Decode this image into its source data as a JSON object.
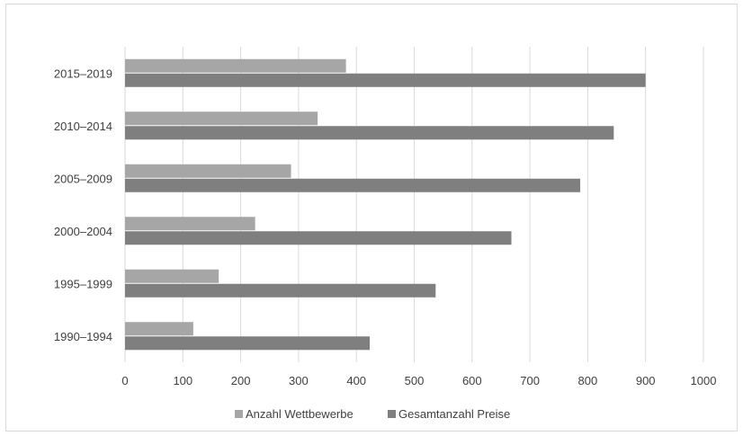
{
  "chart_data": {
    "type": "bar",
    "orientation": "horizontal",
    "title": "",
    "xlabel": "",
    "ylabel": "",
    "categories": [
      "1990–1994",
      "1995–1999",
      "2000–2004",
      "2005–2009",
      "2010–2014",
      "2015–2019"
    ],
    "series": [
      {
        "name": "Anzahl Wettbewerbe",
        "values": [
          118,
          162,
          225,
          287,
          333,
          382
        ],
        "color": "#a6a6a6"
      },
      {
        "name": "Gesamtanzahl Preise",
        "values": [
          423,
          537,
          668,
          787,
          845,
          900
        ],
        "color": "#7f7f7f"
      }
    ],
    "xlim": [
      0,
      1000
    ],
    "xticks": [
      0,
      100,
      200,
      300,
      400,
      500,
      600,
      700,
      800,
      900,
      1000
    ],
    "grid": "vertical",
    "legend_position": "bottom"
  }
}
